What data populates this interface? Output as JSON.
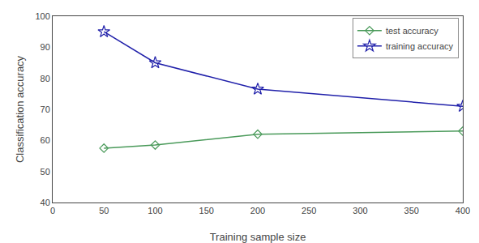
{
  "chart_data": {
    "type": "line",
    "x": [
      50,
      100,
      200,
      400
    ],
    "series": [
      {
        "name": "test accuracy",
        "color": "#4a9a5a",
        "marker": "diamond",
        "values": [
          57.5,
          58.5,
          62.0,
          63.0
        ]
      },
      {
        "name": "training accuracy",
        "color": "#2020aa",
        "marker": "star",
        "values": [
          95.0,
          85.0,
          76.5,
          71.0
        ]
      }
    ],
    "xlabel": "Training sample size",
    "ylabel": "Classification accuracy",
    "xlim": [
      0,
      400
    ],
    "ylim": [
      40,
      100
    ],
    "xticks": [
      0,
      50,
      100,
      150,
      200,
      250,
      300,
      350,
      400
    ],
    "yticks": [
      40,
      50,
      60,
      70,
      80,
      90,
      100
    ],
    "grid": false,
    "legend": "upper right"
  }
}
